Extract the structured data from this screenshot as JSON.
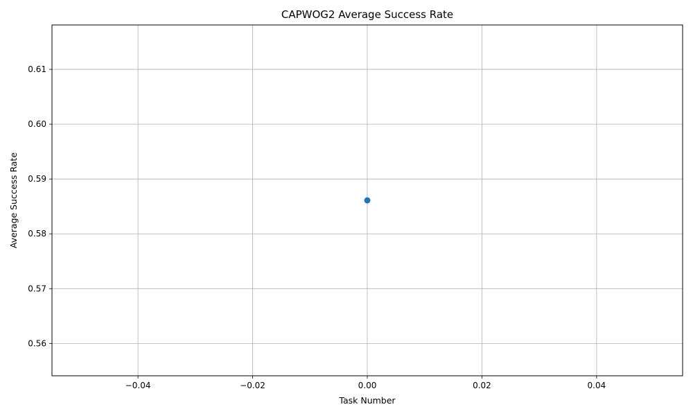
{
  "chart_data": {
    "type": "scatter",
    "title": "CAPWOG2 Average Success Rate",
    "xlabel": "Task Number",
    "ylabel": "Average Success Rate",
    "xlim": [
      -0.055,
      0.055
    ],
    "ylim": [
      0.5541,
      0.6181
    ],
    "x_ticks": [
      -0.04,
      -0.02,
      0.0,
      0.02,
      0.04
    ],
    "x_tick_labels": [
      "−0.04",
      "−0.02",
      "0.00",
      "0.02",
      "0.04"
    ],
    "y_ticks": [
      0.56,
      0.57,
      0.58,
      0.59,
      0.6,
      0.61
    ],
    "y_tick_labels": [
      "0.56",
      "0.57",
      "0.58",
      "0.59",
      "0.60",
      "0.61"
    ],
    "grid": true,
    "series": [
      {
        "color": "#1f77b4",
        "marker": "circle",
        "points": [
          {
            "x": 0.0,
            "y": 0.5861
          }
        ]
      }
    ]
  }
}
